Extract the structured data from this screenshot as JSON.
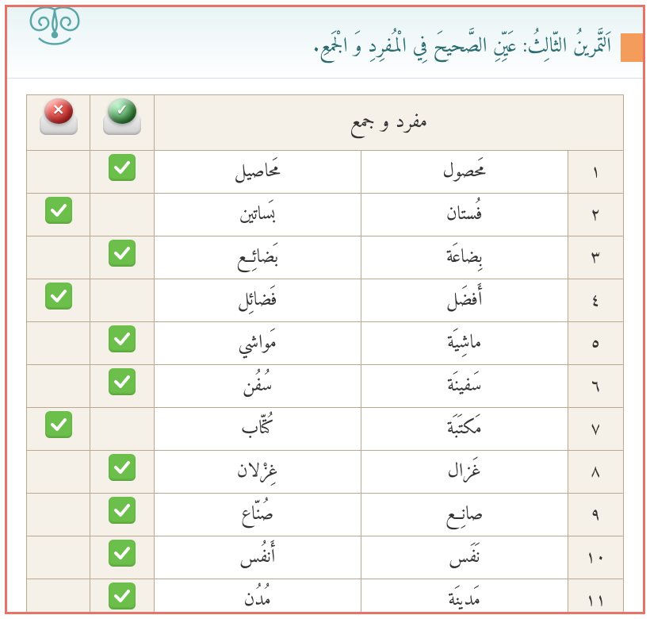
{
  "title": "اَلتَّمرينُ الثّالِثُ: عَيِّنِ الصَّحيحَ فِي الْمُفرِدِ وَ الْجَمعِ.",
  "header_label": "مفرد و جمع",
  "colors": {
    "border": "#e57368",
    "header_bg": "#f6f1e8",
    "title_color": "#2a6b6f",
    "orange_tab": "#f39c5b",
    "check_green": "#6cbf4a",
    "btn_red": "#c62828",
    "btn_green": "#2e7d32"
  },
  "rows": [
    {
      "num": "١",
      "singular": "مَحصول",
      "plural": "مَحاصيل",
      "correct": true,
      "wrong": false
    },
    {
      "num": "٢",
      "singular": "فُستان",
      "plural": "بَساتين",
      "correct": false,
      "wrong": true
    },
    {
      "num": "٣",
      "singular": "بِضاعَة",
      "plural": "بَضائِع",
      "correct": true,
      "wrong": false
    },
    {
      "num": "٤",
      "singular": "أَفضَل",
      "plural": "فَضائِل",
      "correct": false,
      "wrong": true
    },
    {
      "num": "٥",
      "singular": "ماشِيَة",
      "plural": "مَواشي",
      "correct": true,
      "wrong": false
    },
    {
      "num": "٦",
      "singular": "سَفينَة",
      "plural": "سُفُن",
      "correct": true,
      "wrong": false
    },
    {
      "num": "٧",
      "singular": "مَكتَبَة",
      "plural": "كُتّاب",
      "correct": false,
      "wrong": true
    },
    {
      "num": "٨",
      "singular": "غَزال",
      "plural": "غِزْلان",
      "correct": true,
      "wrong": false
    },
    {
      "num": "٩",
      "singular": "صانِع",
      "plural": "صُنّاع",
      "correct": true,
      "wrong": false
    },
    {
      "num": "١٠",
      "singular": "نَفَس",
      "plural": "أَنفُس",
      "correct": true,
      "wrong": false
    },
    {
      "num": "١١",
      "singular": "مَدينَة",
      "plural": "مُدُن",
      "correct": true,
      "wrong": false
    }
  ]
}
